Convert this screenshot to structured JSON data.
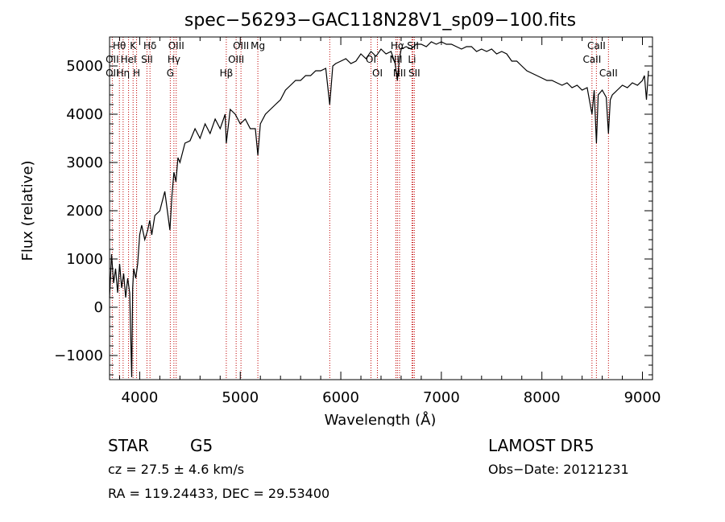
{
  "chart_data": {
    "type": "line",
    "title": "spec−56293−GAC118N28V1_sp09−100.fits",
    "xlabel": "Wavelength (Å)",
    "ylabel": "Flux (relative)",
    "xlim": [
      3700,
      9100
    ],
    "ylim": [
      -1500,
      5600
    ],
    "xticks": [
      4000,
      5000,
      6000,
      7000,
      8000,
      9000
    ],
    "yticks": [
      -1000,
      0,
      1000,
      2000,
      3000,
      4000,
      5000
    ],
    "grid": false,
    "series": [
      {
        "color": "#000000",
        "x": [
          3700,
          3720,
          3740,
          3760,
          3780,
          3800,
          3820,
          3840,
          3860,
          3880,
          3900,
          3920,
          3930,
          3940,
          3960,
          3980,
          4000,
          4020,
          4050,
          4080,
          4100,
          4120,
          4150,
          4200,
          4250,
          4300,
          4320,
          4340,
          4360,
          4380,
          4400,
          4450,
          4500,
          4550,
          4600,
          4650,
          4700,
          4750,
          4800,
          4850,
          4861,
          4900,
          4950,
          5000,
          5050,
          5100,
          5150,
          5175,
          5200,
          5250,
          5300,
          5350,
          5400,
          5450,
          5500,
          5550,
          5600,
          5650,
          5700,
          5750,
          5800,
          5850,
          5890,
          5920,
          5950,
          6000,
          6050,
          6100,
          6150,
          6200,
          6250,
          6300,
          6350,
          6400,
          6450,
          6500,
          6540,
          6563,
          6580,
          6600,
          6650,
          6700,
          6750,
          6800,
          6850,
          6900,
          6950,
          7000,
          7050,
          7100,
          7150,
          7200,
          7250,
          7300,
          7350,
          7400,
          7450,
          7500,
          7550,
          7600,
          7650,
          7700,
          7750,
          7800,
          7850,
          7900,
          7950,
          8000,
          8050,
          8100,
          8150,
          8200,
          8250,
          8300,
          8350,
          8400,
          8450,
          8498,
          8520,
          8542,
          8560,
          8600,
          8640,
          8662,
          8680,
          8700,
          8750,
          8800,
          8850,
          8900,
          8950,
          9000,
          9020,
          9040,
          9060
        ],
        "y": [
          200,
          1100,
          500,
          800,
          300,
          900,
          400,
          700,
          200,
          600,
          300,
          -1450,
          400,
          800,
          600,
          900,
          1500,
          1700,
          1400,
          1600,
          1800,
          1500,
          1900,
          2000,
          2400,
          1600,
          2300,
          2800,
          2600,
          3100,
          3000,
          3400,
          3450,
          3700,
          3500,
          3800,
          3600,
          3900,
          3700,
          4000,
          3400,
          4100,
          4000,
          3800,
          3900,
          3700,
          3700,
          3150,
          3800,
          4000,
          4100,
          4200,
          4300,
          4500,
          4600,
          4700,
          4700,
          4800,
          4800,
          4900,
          4900,
          4950,
          4200,
          5000,
          5050,
          5100,
          5150,
          5050,
          5100,
          5250,
          5150,
          5300,
          5200,
          5350,
          5250,
          5300,
          5050,
          4700,
          5100,
          5350,
          5400,
          5350,
          5450,
          5450,
          5400,
          5500,
          5450,
          5500,
          5450,
          5450,
          5400,
          5350,
          5400,
          5400,
          5300,
          5350,
          5300,
          5350,
          5250,
          5300,
          5250,
          5100,
          5100,
          5000,
          4900,
          4850,
          4800,
          4750,
          4700,
          4700,
          4650,
          4600,
          4650,
          4550,
          4600,
          4500,
          4550,
          4000,
          4500,
          3400,
          4400,
          4500,
          4350,
          3600,
          4300,
          4400,
          4500,
          4600,
          4550,
          4650,
          4600,
          4700,
          4800,
          4300,
          4900
        ]
      }
    ],
    "lines": [
      {
        "label": "Hθ",
        "wavelength": 3798
      },
      {
        "label": "OII",
        "wavelength": 3727
      },
      {
        "label": "OII",
        "wavelength": 3727
      },
      {
        "label": "K",
        "wavelength": 3934
      },
      {
        "label": "HeI",
        "wavelength": 3889
      },
      {
        "label": "Hη",
        "wavelength": 3835
      },
      {
        "label": "Hδ",
        "wavelength": 4102
      },
      {
        "label": "SII",
        "wavelength": 4072
      },
      {
        "label": "H",
        "wavelength": 3969
      },
      {
        "label": "OIII",
        "wavelength": 4363
      },
      {
        "label": "Hγ",
        "wavelength": 4340
      },
      {
        "label": "G",
        "wavelength": 4304
      },
      {
        "label": "OIII",
        "wavelength": 5007
      },
      {
        "label": "OIII",
        "wavelength": 4959
      },
      {
        "label": "Hβ",
        "wavelength": 4861
      },
      {
        "label": "Mg",
        "wavelength": 5175
      },
      {
        "label": "OI",
        "wavelength": 6300
      },
      {
        "label": "OI",
        "wavelength": 6364
      },
      {
        "label": "Hα",
        "wavelength": 6563
      },
      {
        "label": "NII",
        "wavelength": 6548
      },
      {
        "label": "NII",
        "wavelength": 6584
      },
      {
        "label": "SII",
        "wavelength": 6717
      },
      {
        "label": "Li",
        "wavelength": 6708
      },
      {
        "label": "SII",
        "wavelength": 6731
      },
      {
        "label": "CaII",
        "wavelength": 8542
      },
      {
        "label": "CaII",
        "wavelength": 8498
      },
      {
        "label": "CaII",
        "wavelength": 8662
      }
    ],
    "extra_line_markers": [
      5890,
      6548,
      6584
    ]
  },
  "info": {
    "object_type": "STAR",
    "spectral_class": "G5",
    "survey": "LAMOST DR5",
    "cz": "cz = 27.5 ± 4.6 km/s",
    "obs_date": "Obs−Date: 20121231",
    "radec": "RA = 119.24433, DEC =  29.53400"
  }
}
